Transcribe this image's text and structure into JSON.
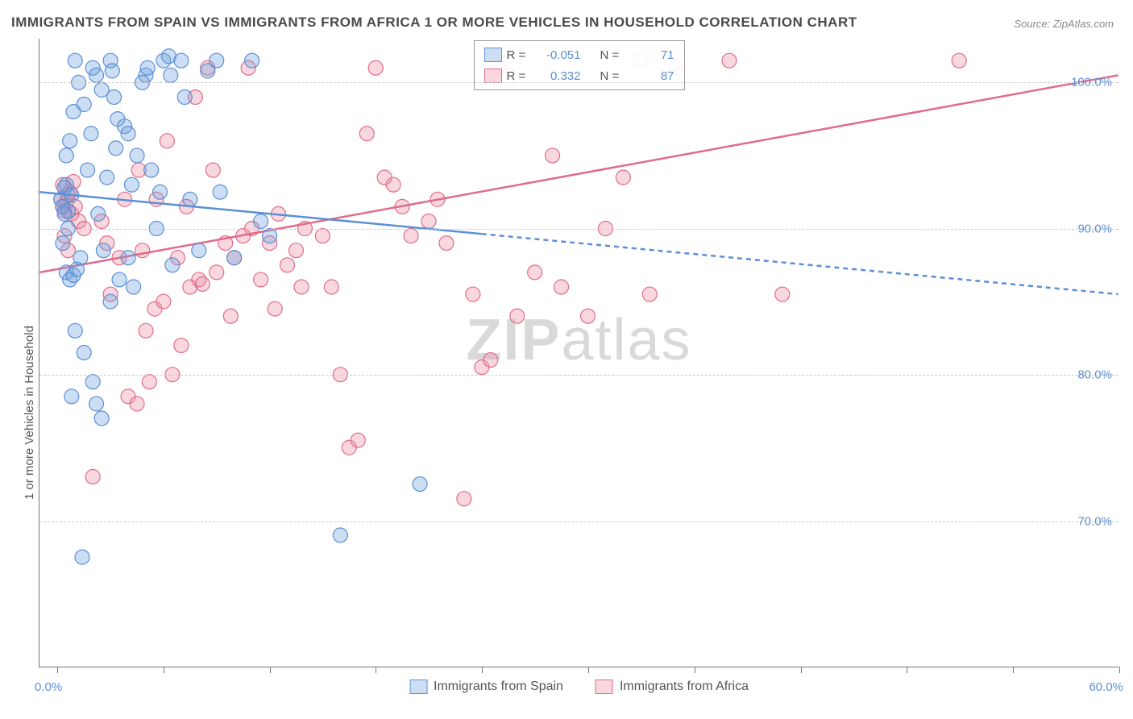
{
  "title": "IMMIGRANTS FROM SPAIN VS IMMIGRANTS FROM AFRICA 1 OR MORE VEHICLES IN HOUSEHOLD CORRELATION CHART",
  "source": "Source: ZipAtlas.com",
  "watermark": {
    "bold": "ZIP",
    "light": "atlas"
  },
  "y_axis": {
    "label": "1 or more Vehicles in Household",
    "min": 60.0,
    "max": 103.0,
    "ticks": [
      70.0,
      80.0,
      90.0,
      100.0
    ],
    "tick_labels": [
      "70.0%",
      "80.0%",
      "90.0%",
      "100.0%"
    ],
    "label_color": "#5b8fd6"
  },
  "x_axis": {
    "min": -1.0,
    "max": 60.0,
    "ticks": [
      0.0,
      6.0,
      12.0,
      18.0,
      24.0,
      30.0,
      36.0,
      42.0,
      48.0,
      54.0,
      60.0
    ],
    "end_labels": {
      "left": "0.0%",
      "right": "60.0%"
    }
  },
  "series": {
    "spain": {
      "label": "Immigrants from Spain",
      "fill": "rgba(108,160,220,0.35)",
      "stroke": "#5b8fd6",
      "r_value": "-0.051",
      "n_value": "71",
      "trend": {
        "y_at_xmin": 92.5,
        "y_at_xmax": 85.5,
        "solid_until_x": 24.0
      },
      "points": [
        [
          0.2,
          92.0
        ],
        [
          0.3,
          91.5
        ],
        [
          0.5,
          93.0
        ],
        [
          0.4,
          92.8
        ],
        [
          0.6,
          91.2
        ],
        [
          0.8,
          92.3
        ],
        [
          1.0,
          101.5
        ],
        [
          1.2,
          100.0
        ],
        [
          0.5,
          87.0
        ],
        [
          0.7,
          86.5
        ],
        [
          0.9,
          86.8
        ],
        [
          1.1,
          87.2
        ],
        [
          1.3,
          88.0
        ],
        [
          1.5,
          98.5
        ],
        [
          2.0,
          101.0
        ],
        [
          2.2,
          100.5
        ],
        [
          2.5,
          99.5
        ],
        [
          3.0,
          101.5
        ],
        [
          3.1,
          100.8
        ],
        [
          3.2,
          99.0
        ],
        [
          3.4,
          97.5
        ],
        [
          3.8,
          97.0
        ],
        [
          4.0,
          96.5
        ],
        [
          4.5,
          95.0
        ],
        [
          5.0,
          100.5
        ],
        [
          5.3,
          94.0
        ],
        [
          5.8,
          92.5
        ],
        [
          6.0,
          101.5
        ],
        [
          6.3,
          101.8
        ],
        [
          6.4,
          100.5
        ],
        [
          7.0,
          101.5
        ],
        [
          7.2,
          99.0
        ],
        [
          7.5,
          92.0
        ],
        [
          8.0,
          88.5
        ],
        [
          8.5,
          100.8
        ],
        [
          9.0,
          101.5
        ],
        [
          9.2,
          92.5
        ],
        [
          10.0,
          88.0
        ],
        [
          11.0,
          101.5
        ],
        [
          11.5,
          90.5
        ],
        [
          12.0,
          89.5
        ],
        [
          1.0,
          83.0
        ],
        [
          1.5,
          81.5
        ],
        [
          2.0,
          79.5
        ],
        [
          2.2,
          78.0
        ],
        [
          2.5,
          77.0
        ],
        [
          0.8,
          78.5
        ],
        [
          3.0,
          85.0
        ],
        [
          3.5,
          86.5
        ],
        [
          4.0,
          88.0
        ],
        [
          4.3,
          86.0
        ],
        [
          1.4,
          67.5
        ],
        [
          16.0,
          69.0
        ],
        [
          20.5,
          72.5
        ],
        [
          0.5,
          95.0
        ],
        [
          0.7,
          96.0
        ],
        [
          0.9,
          98.0
        ],
        [
          4.8,
          100.0
        ],
        [
          5.1,
          101.0
        ],
        [
          5.6,
          90.0
        ],
        [
          6.5,
          87.5
        ],
        [
          2.8,
          93.5
        ],
        [
          2.3,
          91.0
        ],
        [
          1.7,
          94.0
        ],
        [
          1.9,
          96.5
        ],
        [
          0.3,
          89.0
        ],
        [
          0.6,
          90.0
        ],
        [
          0.4,
          91.0
        ],
        [
          3.3,
          95.5
        ],
        [
          4.2,
          93.0
        ],
        [
          2.6,
          88.5
        ]
      ]
    },
    "africa": {
      "label": "Immigrants from Africa",
      "fill": "rgba(235,140,160,0.35)",
      "stroke": "#e26b8a",
      "r_value": "0.332",
      "n_value": "87",
      "trend": {
        "y_at_xmin": 87.0,
        "y_at_xmax": 100.5,
        "solid_until_x": 60.0
      },
      "points": [
        [
          0.2,
          92.0
        ],
        [
          0.3,
          91.5
        ],
        [
          0.5,
          91.8
        ],
        [
          0.4,
          91.2
        ],
        [
          0.6,
          92.3
        ],
        [
          0.8,
          91.0
        ],
        [
          1.0,
          91.5
        ],
        [
          0.3,
          93.0
        ],
        [
          0.7,
          92.5
        ],
        [
          0.9,
          93.2
        ],
        [
          1.2,
          90.5
        ],
        [
          1.5,
          90.0
        ],
        [
          0.4,
          89.5
        ],
        [
          0.6,
          88.5
        ],
        [
          2.0,
          73.0
        ],
        [
          4.0,
          78.5
        ],
        [
          4.5,
          78.0
        ],
        [
          5.0,
          83.0
        ],
        [
          5.5,
          84.5
        ],
        [
          6.0,
          85.0
        ],
        [
          7.0,
          82.0
        ],
        [
          7.5,
          86.0
        ],
        [
          8.0,
          86.5
        ],
        [
          8.2,
          86.2
        ],
        [
          9.0,
          87.0
        ],
        [
          9.5,
          89.0
        ],
        [
          10.0,
          88.0
        ],
        [
          10.5,
          89.5
        ],
        [
          11.0,
          90.0
        ],
        [
          11.5,
          86.5
        ],
        [
          12.0,
          89.0
        ],
        [
          12.5,
          91.0
        ],
        [
          13.0,
          87.5
        ],
        [
          13.5,
          88.5
        ],
        [
          14.0,
          90.0
        ],
        [
          15.0,
          89.5
        ],
        [
          15.5,
          86.0
        ],
        [
          16.0,
          80.0
        ],
        [
          16.5,
          75.0
        ],
        [
          17.0,
          75.5
        ],
        [
          17.5,
          96.5
        ],
        [
          18.0,
          101.0
        ],
        [
          18.5,
          93.5
        ],
        [
          19.0,
          93.0
        ],
        [
          19.5,
          91.5
        ],
        [
          20.0,
          89.5
        ],
        [
          21.0,
          90.5
        ],
        [
          21.5,
          92.0
        ],
        [
          22.0,
          89.0
        ],
        [
          23.0,
          71.5
        ],
        [
          23.5,
          85.5
        ],
        [
          24.0,
          80.5
        ],
        [
          24.5,
          81.0
        ],
        [
          25.0,
          101.0
        ],
        [
          26.0,
          84.0
        ],
        [
          27.0,
          87.0
        ],
        [
          28.0,
          95.0
        ],
        [
          28.5,
          86.0
        ],
        [
          30.0,
          84.0
        ],
        [
          31.0,
          90.0
        ],
        [
          32.0,
          93.5
        ],
        [
          33.0,
          101.5
        ],
        [
          33.5,
          85.5
        ],
        [
          35.0,
          101.0
        ],
        [
          38.0,
          101.5
        ],
        [
          41.0,
          85.5
        ],
        [
          51.0,
          101.5
        ],
        [
          5.2,
          79.5
        ],
        [
          6.5,
          80.0
        ],
        [
          3.0,
          85.5
        ],
        [
          3.5,
          88.0
        ],
        [
          4.8,
          88.5
        ],
        [
          2.5,
          90.5
        ],
        [
          2.8,
          89.0
        ],
        [
          3.8,
          92.0
        ],
        [
          4.6,
          94.0
        ],
        [
          6.2,
          96.0
        ],
        [
          7.8,
          99.0
        ],
        [
          8.5,
          101.0
        ],
        [
          10.8,
          101.0
        ],
        [
          12.3,
          84.5
        ],
        [
          13.8,
          86.0
        ],
        [
          9.8,
          84.0
        ],
        [
          6.8,
          88.0
        ],
        [
          5.6,
          92.0
        ],
        [
          7.3,
          91.5
        ],
        [
          8.8,
          94.0
        ]
      ]
    }
  },
  "styling": {
    "background": "#ffffff",
    "grid_color": "#cccccc",
    "axis_color": "#777777",
    "title_fontsize": 17,
    "marker_radius": 9,
    "trend_line_width": 2.5,
    "solid_dash": "none",
    "dashed_dash": "6,5"
  },
  "legend": {
    "r_label": "R =",
    "n_label": "N ="
  }
}
